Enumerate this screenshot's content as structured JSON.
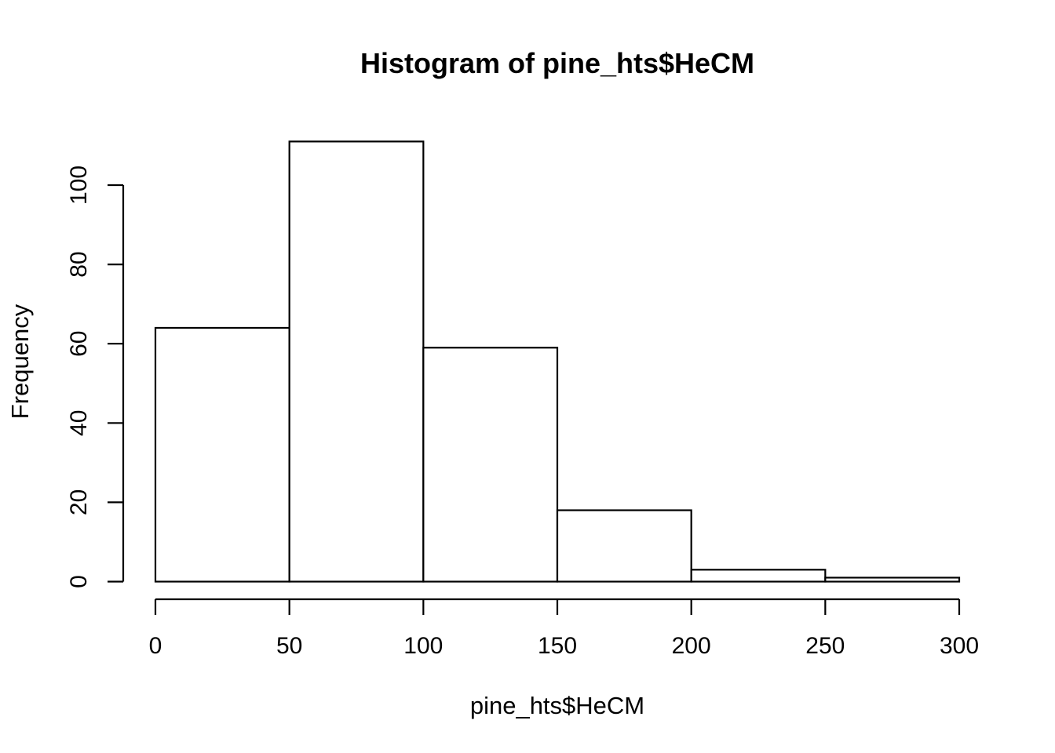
{
  "chart_data": {
    "type": "bar",
    "title": "Histogram of pine_hts$HeCM",
    "xlabel": "pine_hts$HeCM",
    "ylabel": "Frequency",
    "bins": [
      {
        "start": 0,
        "end": 50,
        "count": 64
      },
      {
        "start": 50,
        "end": 100,
        "count": 111
      },
      {
        "start": 100,
        "end": 150,
        "count": 59
      },
      {
        "start": 150,
        "end": 200,
        "count": 18
      },
      {
        "start": 200,
        "end": 250,
        "count": 3
      },
      {
        "start": 250,
        "end": 300,
        "count": 1
      }
    ],
    "xlim": [
      0,
      300
    ],
    "ylim": [
      0,
      111
    ],
    "x_ticks": [
      "0",
      "50",
      "100",
      "150",
      "200",
      "250",
      "300"
    ],
    "y_ticks": [
      "0",
      "20",
      "40",
      "60",
      "80",
      "100"
    ],
    "grid": false,
    "legend": "none",
    "colors": {
      "bar_fill": "#ffffff",
      "bar_stroke": "#000000"
    }
  }
}
